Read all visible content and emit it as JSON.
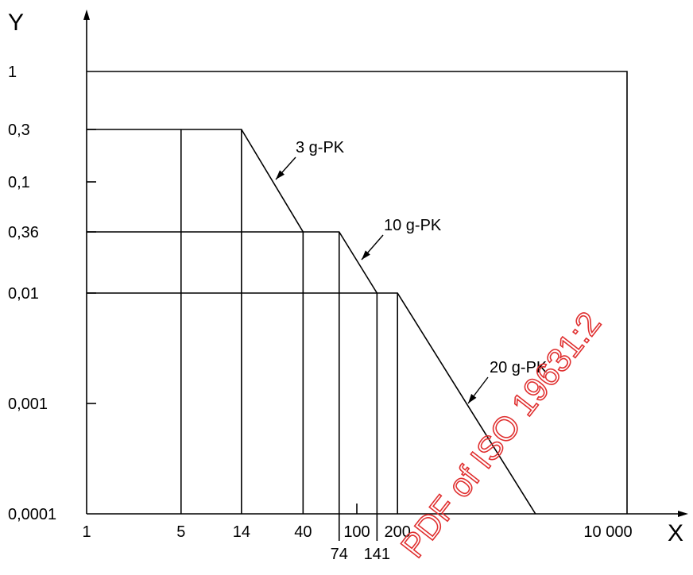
{
  "chart_data": {
    "type": "line",
    "xlabel": "X",
    "ylabel": "Y",
    "x_scale": "log",
    "xlim": [
      1,
      10000
    ],
    "x_ticks": [
      {
        "label": "1",
        "value": 1
      },
      {
        "label": "5",
        "value": 5
      },
      {
        "label": "14",
        "value": 14
      },
      {
        "label": "40",
        "value": 40
      },
      {
        "label": "74",
        "value": 74
      },
      {
        "label": "100",
        "value": 100
      },
      {
        "label": "141",
        "value": 141
      },
      {
        "label": "200",
        "value": 200
      },
      {
        "label": "10 000",
        "value": 10000
      }
    ],
    "y_ticks": [
      "1",
      "0,3",
      "0,1",
      "0,36",
      "0,01",
      "0,001",
      "0,0001"
    ],
    "series": [
      {
        "name": "3 g-PK",
        "points": [
          {
            "x": 1,
            "y": "0,3"
          },
          {
            "x": 14,
            "y": "0,3"
          },
          {
            "x": 40,
            "y": "0,36"
          }
        ]
      },
      {
        "name": "10 g-PK",
        "points": [
          {
            "x": 1,
            "y": "0,36"
          },
          {
            "x": 74,
            "y": "0,36"
          },
          {
            "x": 141,
            "y": "0,01"
          }
        ]
      },
      {
        "name": "20 g-PK",
        "points": [
          {
            "x": 1,
            "y": "0,01"
          },
          {
            "x": 200,
            "y": "0,01"
          },
          {
            "x": 2100,
            "y": "0,0001"
          }
        ]
      }
    ],
    "reference_lines_x": [
      5,
      14,
      40,
      74,
      141,
      200
    ],
    "frame": {
      "x": [
        1,
        10000
      ],
      "y": [
        "0,0001",
        "1"
      ]
    },
    "grid": false,
    "legend": "none"
  },
  "watermark": {
    "text": "PDF of ISO 19631:2",
    "color": "#e03030"
  }
}
